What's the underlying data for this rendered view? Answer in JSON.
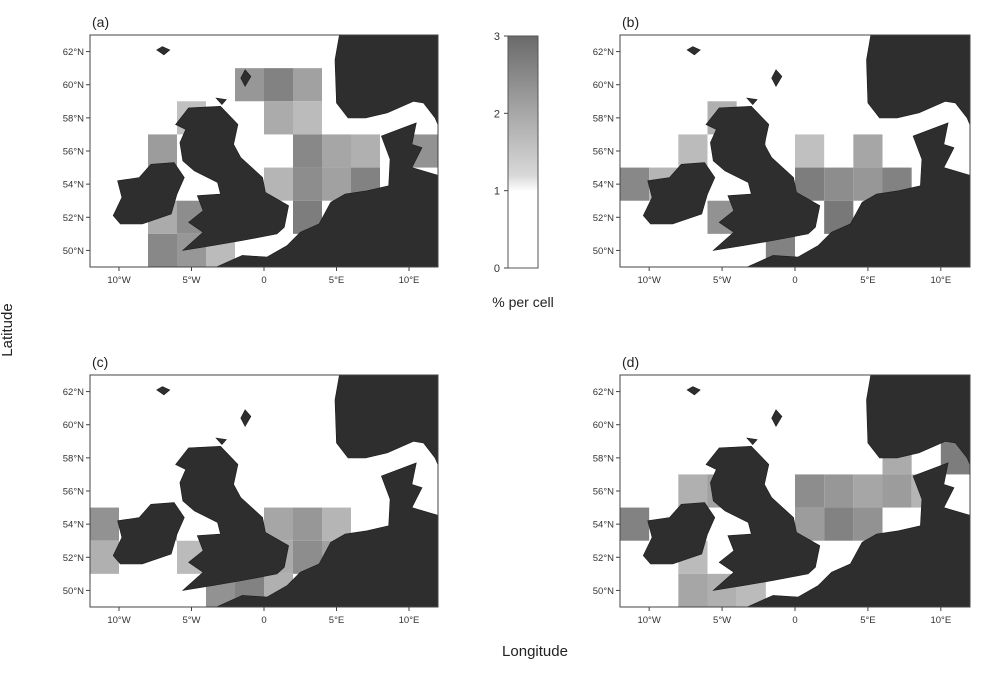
{
  "figure": {
    "x_axis_title": "Longitude",
    "y_axis_title": "Latitude",
    "colorbar_label": "% per cell",
    "colorbar_ticks": [
      "0",
      "1",
      "2",
      "3"
    ]
  },
  "colors": {
    "land": "#2e2e2e",
    "sea": "#ffffff",
    "cell_low": "#d4d4d4",
    "cell_high": "#6e6e6e"
  },
  "map_data": {
    "lat_range": [
      49,
      63
    ],
    "lon_range": [
      -12,
      12
    ],
    "lat_ticks": [
      "62°N",
      "60°N",
      "58°N",
      "56°N",
      "54°N",
      "52°N",
      "50°N"
    ],
    "lon_ticks": [
      "10°W",
      "5°W",
      "0",
      "5°E",
      "10°E"
    ],
    "panels": [
      {
        "letter": "(a)",
        "cells": [
          {
            "lon": -1,
            "lat": 60,
            "value": 2.2
          },
          {
            "lon": 1,
            "lat": 60,
            "value": 2.6
          },
          {
            "lon": 3,
            "lat": 60,
            "value": 2.0
          },
          {
            "lon": 1,
            "lat": 58,
            "value": 1.8
          },
          {
            "lon": 3,
            "lat": 58,
            "value": 1.5
          },
          {
            "lon": -5,
            "lat": 58,
            "value": 1.4
          },
          {
            "lon": -7,
            "lat": 56,
            "value": 2.1
          },
          {
            "lon": 3,
            "lat": 56,
            "value": 2.5
          },
          {
            "lon": 5,
            "lat": 56,
            "value": 1.9
          },
          {
            "lon": 7,
            "lat": 56,
            "value": 1.7
          },
          {
            "lon": 11,
            "lat": 56,
            "value": 2.3
          },
          {
            "lon": 1,
            "lat": 54,
            "value": 1.6
          },
          {
            "lon": 3,
            "lat": 54,
            "value": 2.4
          },
          {
            "lon": 5,
            "lat": 54,
            "value": 2.0
          },
          {
            "lon": 7,
            "lat": 54,
            "value": 2.6
          },
          {
            "lon": -5,
            "lat": 52,
            "value": 2.4
          },
          {
            "lon": -7,
            "lat": 52,
            "value": 1.8
          },
          {
            "lon": 3,
            "lat": 52,
            "value": 2.7
          },
          {
            "lon": -7,
            "lat": 50,
            "value": 2.5
          },
          {
            "lon": -5,
            "lat": 50,
            "value": 2.2
          },
          {
            "lon": -3,
            "lat": 50,
            "value": 1.5
          }
        ]
      },
      {
        "letter": "(b)",
        "cells": [
          {
            "lon": -5,
            "lat": 58,
            "value": 1.7
          },
          {
            "lon": -7,
            "lat": 56,
            "value": 1.5
          },
          {
            "lon": -3,
            "lat": 56,
            "value": 1.6
          },
          {
            "lon": 1,
            "lat": 56,
            "value": 1.4
          },
          {
            "lon": -11,
            "lat": 54,
            "value": 2.5
          },
          {
            "lon": -9,
            "lat": 54,
            "value": 1.6
          },
          {
            "lon": 1,
            "lat": 54,
            "value": 2.7
          },
          {
            "lon": 3,
            "lat": 54,
            "value": 2.4
          },
          {
            "lon": 5,
            "lat": 54,
            "value": 2.2
          },
          {
            "lon": 7,
            "lat": 54,
            "value": 2.6
          },
          {
            "lon": 5,
            "lat": 56,
            "value": 1.9
          },
          {
            "lon": -5,
            "lat": 52,
            "value": 2.3
          },
          {
            "lon": 3,
            "lat": 52,
            "value": 2.8
          },
          {
            "lon": -1,
            "lat": 50,
            "value": 2.6
          }
        ]
      },
      {
        "letter": "(c)",
        "cells": [
          {
            "lon": -11,
            "lat": 54,
            "value": 2.3
          },
          {
            "lon": -11,
            "lat": 52,
            "value": 1.7
          },
          {
            "lon": -7,
            "lat": 54,
            "value": 1.6
          },
          {
            "lon": 1,
            "lat": 54,
            "value": 1.9
          },
          {
            "lon": 3,
            "lat": 54,
            "value": 2.2
          },
          {
            "lon": 5,
            "lat": 54,
            "value": 1.6
          },
          {
            "lon": 3,
            "lat": 52,
            "value": 2.4
          },
          {
            "lon": 5,
            "lat": 52,
            "value": 2.0
          },
          {
            "lon": 1,
            "lat": 52,
            "value": 1.8
          },
          {
            "lon": -3,
            "lat": 50,
            "value": 2.3
          },
          {
            "lon": -1,
            "lat": 50,
            "value": 2.6
          },
          {
            "lon": 1,
            "lat": 50,
            "value": 1.7
          },
          {
            "lon": -5,
            "lat": 52,
            "value": 1.5
          }
        ]
      },
      {
        "letter": "(d)",
        "cells": [
          {
            "lon": -11,
            "lat": 54,
            "value": 2.6
          },
          {
            "lon": -5,
            "lat": 56,
            "value": 2.0
          },
          {
            "lon": -7,
            "lat": 56,
            "value": 1.7
          },
          {
            "lon": 1,
            "lat": 56,
            "value": 2.4
          },
          {
            "lon": 3,
            "lat": 56,
            "value": 2.2
          },
          {
            "lon": 5,
            "lat": 56,
            "value": 1.9
          },
          {
            "lon": 7,
            "lat": 56,
            "value": 2.1
          },
          {
            "lon": 9,
            "lat": 56,
            "value": 1.6
          },
          {
            "lon": 11,
            "lat": 58,
            "value": 2.7
          },
          {
            "lon": 7,
            "lat": 58,
            "value": 1.8
          },
          {
            "lon": 1,
            "lat": 54,
            "value": 2.1
          },
          {
            "lon": 3,
            "lat": 54,
            "value": 2.6
          },
          {
            "lon": 5,
            "lat": 54,
            "value": 2.3
          },
          {
            "lon": -1,
            "lat": 52,
            "value": 1.6
          },
          {
            "lon": -7,
            "lat": 52,
            "value": 1.5
          },
          {
            "lon": -5,
            "lat": 50,
            "value": 1.7
          },
          {
            "lon": -7,
            "lat": 50,
            "value": 1.9
          },
          {
            "lon": -3,
            "lat": 50,
            "value": 1.5
          }
        ]
      }
    ]
  }
}
